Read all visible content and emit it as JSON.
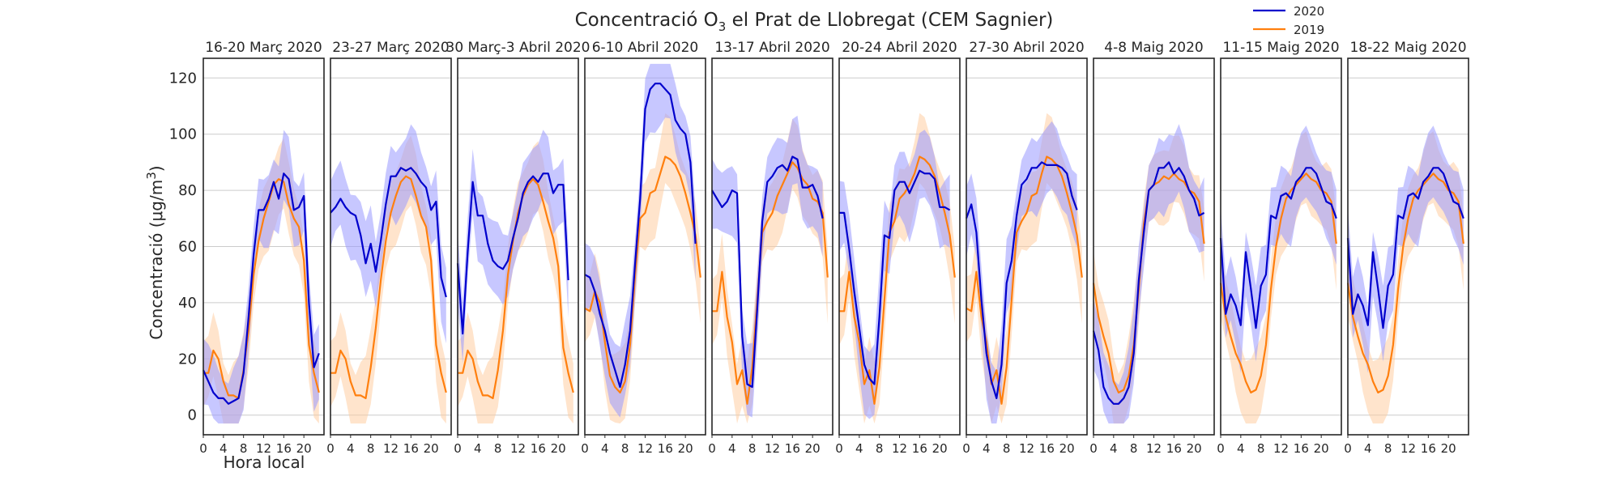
{
  "chart_data": {
    "type": "line",
    "title": {
      "prefix": "Concentració O",
      "subscript": "3",
      "suffix": " el Prat de Llobregat (CEM Sagnier)"
    },
    "xlabel": "Hora local",
    "ylabel": {
      "main": "Concentració (μg/m",
      "superscript": "3",
      "end": ")"
    },
    "x_ticks": [
      0,
      4,
      8,
      12,
      16,
      20
    ],
    "xlim": [
      0,
      24
    ],
    "y_ticks": [
      0,
      20,
      40,
      60,
      80,
      100,
      120
    ],
    "ylim": [
      -7,
      127
    ],
    "grid": true,
    "legend": {
      "placement": "top-right",
      "entries": [
        {
          "label": "2020",
          "color": "#0000cc"
        },
        {
          "label": "2019",
          "color": "#ff7f0e"
        }
      ]
    },
    "colors": {
      "s2020": "#0000cc",
      "s2019": "#ff7f0e",
      "band2020": "#9999ff",
      "band2019": "#ffc999"
    },
    "panels": [
      {
        "title": "16-20 Març 2020",
        "s2020": [
          16,
          12,
          8,
          6,
          6,
          4,
          5,
          6,
          15,
          35,
          57,
          73,
          73,
          77,
          83,
          77,
          86,
          84,
          73,
          74,
          78,
          40,
          17,
          22
        ],
        "s2019": [
          15,
          15,
          23,
          20,
          12,
          7,
          7,
          6,
          16,
          30,
          50,
          62,
          70,
          76,
          82,
          84,
          83,
          75,
          70,
          67,
          55,
          25,
          15,
          8
        ]
      },
      {
        "title": "23-27 Març 2020",
        "s2020": [
          72,
          74,
          77,
          74,
          72,
          71,
          64,
          54,
          61,
          51,
          62,
          75,
          85,
          85,
          88,
          87,
          88,
          86,
          83,
          81,
          73,
          76,
          49,
          42
        ],
        "s2019": [
          15,
          15,
          23,
          20,
          12,
          7,
          7,
          6,
          17,
          31,
          48,
          62,
          72,
          78,
          83,
          85,
          84,
          78,
          71,
          67,
          55,
          25,
          15,
          8
        ]
      },
      {
        "title": "30 Març-3 Abril 2020",
        "s2020": [
          54,
          29,
          58,
          83,
          71,
          71,
          61,
          55,
          53,
          52,
          55,
          63,
          70,
          79,
          83,
          85,
          83,
          86,
          86,
          79,
          82,
          82,
          48
        ],
        "s2019": [
          15,
          15,
          23,
          20,
          12,
          7,
          7,
          6,
          16,
          30,
          50,
          62,
          72,
          78,
          82,
          84,
          82,
          76,
          69,
          63,
          53,
          24,
          15,
          8
        ]
      },
      {
        "title": "6-10 Abril 2020",
        "s2020": [
          50,
          49,
          44,
          36,
          30,
          22,
          16,
          10,
          18,
          30,
          54,
          77,
          109,
          116,
          118,
          118,
          116,
          114,
          105,
          102,
          100,
          90,
          61
        ],
        "s2019": [
          38,
          37,
          44,
          40,
          26,
          14,
          10,
          8,
          12,
          25,
          50,
          70,
          72,
          79,
          80,
          86,
          92,
          91,
          89,
          85,
          79,
          72,
          64,
          49
        ]
      },
      {
        "title": "13-17 Abril 2020",
        "s2020": [
          80,
          77,
          74,
          76,
          80,
          79,
          28,
          11,
          10,
          38,
          69,
          83,
          85,
          88,
          89,
          87,
          92,
          91,
          81,
          81,
          82,
          78,
          70
        ],
        "s2019": [
          37,
          37,
          51,
          35,
          26,
          11,
          16,
          4,
          17,
          41,
          65,
          69,
          72,
          78,
          82,
          86,
          90,
          88,
          84,
          82,
          77,
          76,
          72,
          49
        ]
      },
      {
        "title": "20-24 Abril 2020",
        "s2020": [
          72,
          72,
          59,
          44,
          31,
          18,
          13,
          11,
          35,
          64,
          63,
          80,
          83,
          83,
          79,
          83,
          87,
          86,
          86,
          84,
          74,
          74,
          73
        ],
        "s2019": [
          37,
          37,
          51,
          35,
          26,
          11,
          16,
          4,
          17,
          41,
          65,
          69,
          77,
          79,
          82,
          86,
          92,
          91,
          89,
          85,
          79,
          72,
          64,
          49
        ]
      },
      {
        "title": "27-30 Abril 2020",
        "s2020": [
          70,
          75,
          65,
          41,
          22,
          12,
          6,
          18,
          47,
          55,
          71,
          82,
          84,
          88,
          88,
          90,
          89,
          89,
          89,
          88,
          86,
          78,
          73
        ],
        "s2019": [
          38,
          37,
          51,
          35,
          26,
          11,
          16,
          4,
          17,
          41,
          65,
          69,
          72,
          78,
          79,
          86,
          92,
          91,
          89,
          85,
          79,
          72,
          64,
          49
        ]
      },
      {
        "title": "4-8 Maig 2020",
        "s2020": [
          30,
          23,
          10,
          6,
          4,
          4,
          6,
          10,
          22,
          48,
          65,
          80,
          82,
          88,
          88,
          90,
          86,
          88,
          85,
          80,
          77,
          71,
          72
        ],
        "s2019": [
          47,
          35,
          28,
          22,
          12,
          8,
          9,
          14,
          25,
          45,
          68,
          80,
          82,
          83,
          85,
          84,
          86,
          84,
          83,
          80,
          79,
          76,
          61
        ]
      },
      {
        "title": "11-15 Maig 2020",
        "s2020": [
          63,
          36,
          43,
          39,
          32,
          58,
          45,
          31,
          46,
          50,
          71,
          70,
          78,
          79,
          77,
          83,
          85,
          88,
          88,
          86,
          81,
          76,
          75,
          70
        ],
        "s2019": [
          47,
          35,
          28,
          22,
          18,
          12,
          8,
          9,
          14,
          25,
          45,
          60,
          70,
          77,
          80,
          82,
          84,
          86,
          84,
          83,
          80,
          79,
          76,
          61
        ]
      },
      {
        "title": "18-22 Maig 2020",
        "s2020": [
          63,
          36,
          43,
          39,
          32,
          58,
          45,
          31,
          46,
          50,
          71,
          70,
          78,
          79,
          77,
          83,
          85,
          88,
          88,
          86,
          81,
          76,
          75,
          70
        ],
        "s2019": [
          47,
          35,
          28,
          22,
          18,
          12,
          8,
          9,
          14,
          25,
          45,
          60,
          70,
          77,
          80,
          82,
          84,
          86,
          84,
          83,
          80,
          79,
          76,
          61
        ]
      }
    ]
  }
}
